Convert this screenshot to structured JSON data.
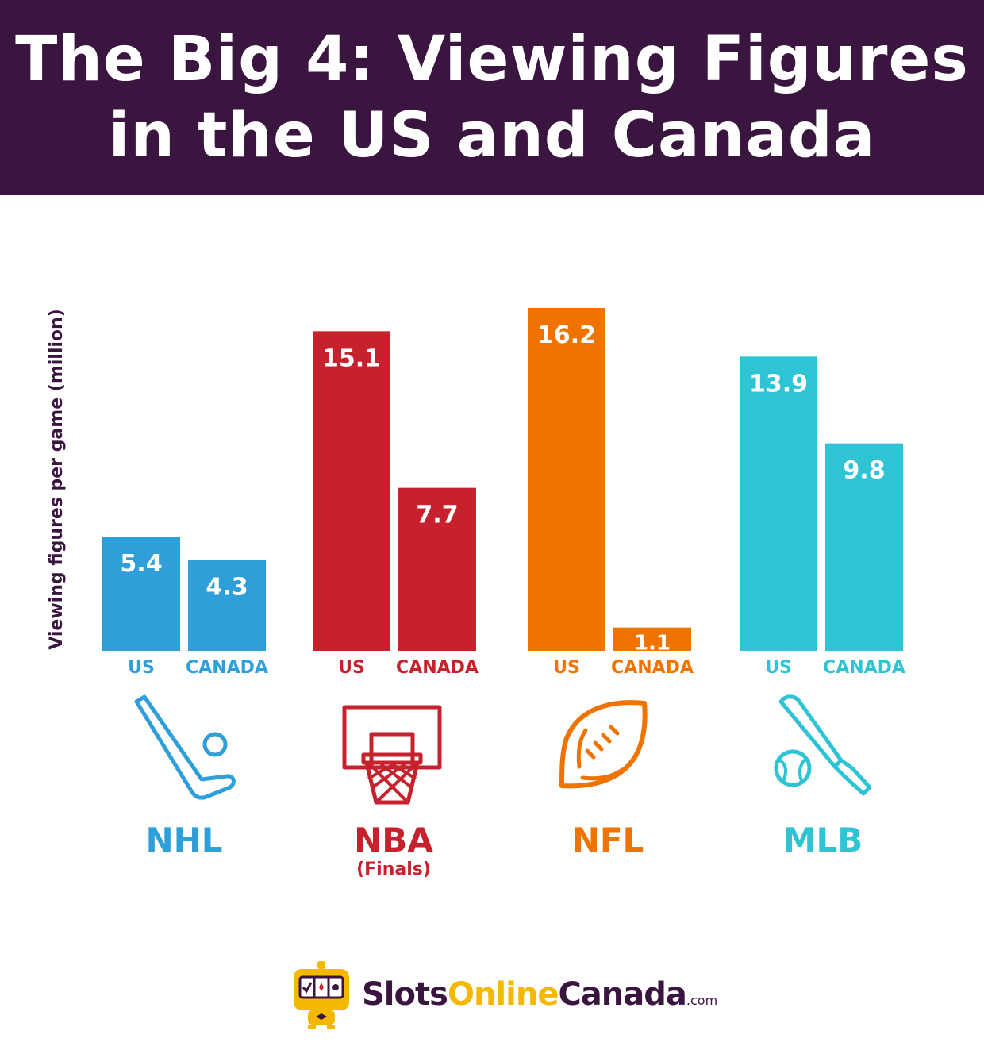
{
  "title_line1": "The Big 4: Viewing Figures",
  "title_line2": "in the US and Canada",
  "chart_data": {
    "type": "bar",
    "ylabel": "Viewing figures per game (million)",
    "ylim": [
      0,
      16.2
    ],
    "grid": false,
    "groups": [
      {
        "league": "NHL",
        "sublabel": "",
        "color": "#2e9fd8",
        "icon": "hockey-stick-icon",
        "categories": [
          "US",
          "CANADA"
        ],
        "values": [
          5.4,
          4.3
        ],
        "labels": [
          "5.4",
          "4.3"
        ]
      },
      {
        "league": "NBA",
        "sublabel": "(Finals)",
        "color": "#c8212e",
        "icon": "basketball-hoop-icon",
        "categories": [
          "US",
          "CANADA"
        ],
        "values": [
          15.1,
          7.7
        ],
        "labels": [
          "15.1",
          "7.7"
        ]
      },
      {
        "league": "NFL",
        "sublabel": "",
        "color": "#f07300",
        "icon": "football-icon",
        "categories": [
          "US",
          "CANADA"
        ],
        "values": [
          16.2,
          1.1
        ],
        "labels": [
          "16.2",
          "1.1"
        ]
      },
      {
        "league": "MLB",
        "sublabel": "",
        "color": "#2fc4d3",
        "icon": "baseball-bat-icon",
        "categories": [
          "US",
          "CANADA"
        ],
        "values": [
          13.9,
          9.8
        ],
        "labels": [
          "13.9",
          "9.8"
        ]
      }
    ]
  },
  "brand": {
    "part1": "Slots",
    "part2": "Online",
    "part3": "Canada",
    "part4": ".com",
    "logo_icon": "slot-machine-mascot-icon"
  }
}
